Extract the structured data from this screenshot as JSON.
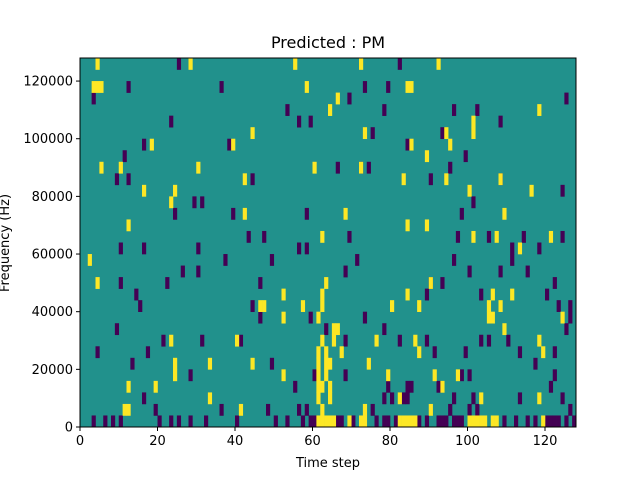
{
  "chart_data": {
    "type": "heatmap",
    "title": "Predicted : PM",
    "xlabel": "Time step",
    "ylabel": "Frequency (Hz)",
    "xlim": [
      0,
      128
    ],
    "ylim": [
      0,
      128000
    ],
    "xticks": [
      0,
      20,
      40,
      60,
      80,
      100,
      120
    ],
    "yticks": [
      0,
      20000,
      40000,
      60000,
      80000,
      100000,
      120000
    ],
    "xtick_labels": [
      "0",
      "20",
      "40",
      "60",
      "80",
      "100",
      "120"
    ],
    "ytick_labels": [
      "0",
      "20000",
      "40000",
      "60000",
      "80000",
      "100000",
      "120000"
    ],
    "grid": false,
    "colormap": "viridis",
    "colors": {
      "background": "#21918c",
      "high": "#fde725",
      "low": "#440154"
    },
    "cell_width_steps": 1,
    "cell_height_hz": 4000,
    "cells_high": [
      [
        4,
        124000
      ],
      [
        3,
        116000
      ],
      [
        4,
        116000
      ],
      [
        5,
        116000
      ],
      [
        28,
        124000
      ],
      [
        55,
        124000
      ],
      [
        72,
        124000
      ],
      [
        92,
        124000
      ],
      [
        58,
        116000
      ],
      [
        84,
        116000
      ],
      [
        66,
        112000
      ],
      [
        85,
        116000
      ],
      [
        64,
        108000
      ],
      [
        118,
        108000
      ],
      [
        101,
        104000
      ],
      [
        18,
        96000
      ],
      [
        39,
        96000
      ],
      [
        85,
        96000
      ],
      [
        95,
        96000
      ],
      [
        44,
        100000
      ],
      [
        73,
        100000
      ],
      [
        94,
        100000
      ],
      [
        101,
        100000
      ],
      [
        10,
        88000
      ],
      [
        89,
        92000
      ],
      [
        72,
        88000
      ],
      [
        5,
        88000
      ],
      [
        60,
        88000
      ],
      [
        30,
        88000
      ],
      [
        16,
        80000
      ],
      [
        24,
        80000
      ],
      [
        42,
        84000
      ],
      [
        83,
        84000
      ],
      [
        94,
        84000
      ],
      [
        100,
        80000
      ],
      [
        116,
        80000
      ],
      [
        108,
        84000
      ],
      [
        12,
        68000
      ],
      [
        2,
        56000
      ],
      [
        4,
        48000
      ],
      [
        23,
        76000
      ],
      [
        42,
        72000
      ],
      [
        62,
        64000
      ],
      [
        68,
        72000
      ],
      [
        84,
        68000
      ],
      [
        89,
        68000
      ],
      [
        101,
        64000
      ],
      [
        107,
        64000
      ],
      [
        113,
        60000
      ],
      [
        109,
        72000
      ],
      [
        121,
        64000
      ],
      [
        80,
        40000
      ],
      [
        84,
        44000
      ],
      [
        87,
        40000
      ],
      [
        90,
        48000
      ],
      [
        46,
        40000
      ],
      [
        47,
        40000
      ],
      [
        52,
        44000
      ],
      [
        52,
        36000
      ],
      [
        57,
        40000
      ],
      [
        61,
        36000
      ],
      [
        62,
        44000
      ],
      [
        62,
        40000
      ],
      [
        63,
        48000
      ],
      [
        65,
        28000
      ],
      [
        65,
        32000
      ],
      [
        66,
        32000
      ],
      [
        67,
        24000
      ],
      [
        76,
        28000
      ],
      [
        74,
        20000
      ],
      [
        79,
        16000
      ],
      [
        82,
        8000
      ],
      [
        86,
        28000
      ],
      [
        87,
        24000
      ],
      [
        91,
        16000
      ],
      [
        93,
        12000
      ],
      [
        97,
        16000
      ],
      [
        103,
        8000
      ],
      [
        105,
        36000
      ],
      [
        105,
        40000
      ],
      [
        106,
        44000
      ],
      [
        106,
        36000
      ],
      [
        108,
        40000
      ],
      [
        109,
        32000
      ],
      [
        111,
        44000
      ],
      [
        118,
        28000
      ],
      [
        119,
        24000
      ],
      [
        124,
        36000
      ],
      [
        33,
        20000
      ],
      [
        23,
        28000
      ],
      [
        40,
        28000
      ],
      [
        44,
        20000
      ],
      [
        52,
        16000
      ],
      [
        24,
        16000
      ],
      [
        12,
        12000
      ],
      [
        11,
        4000
      ],
      [
        12,
        4000
      ],
      [
        19,
        12000
      ],
      [
        24,
        20000
      ],
      [
        33,
        8000
      ],
      [
        41,
        4000
      ],
      [
        61,
        24000
      ],
      [
        61,
        20000
      ],
      [
        61,
        16000
      ],
      [
        61,
        12000
      ],
      [
        61,
        8000
      ],
      [
        62,
        4000
      ],
      [
        61,
        0
      ],
      [
        62,
        0
      ],
      [
        63,
        0
      ],
      [
        64,
        0
      ],
      [
        65,
        0
      ],
      [
        62,
        12000
      ],
      [
        63,
        16000
      ],
      [
        63,
        20000
      ],
      [
        63,
        24000
      ],
      [
        62,
        28000
      ],
      [
        64,
        20000
      ],
      [
        64,
        8000
      ],
      [
        64,
        12000
      ],
      [
        69,
        0
      ],
      [
        72,
        0
      ],
      [
        73,
        4000
      ],
      [
        73,
        0
      ],
      [
        82,
        0
      ],
      [
        83,
        0
      ],
      [
        84,
        0
      ],
      [
        85,
        0
      ],
      [
        86,
        0
      ],
      [
        90,
        4000
      ],
      [
        100,
        0
      ],
      [
        101,
        0
      ],
      [
        102,
        0
      ],
      [
        103,
        0
      ],
      [
        104,
        0
      ],
      [
        106,
        0
      ],
      [
        107,
        0
      ],
      [
        118,
        8000
      ],
      [
        119,
        0
      ]
    ],
    "cells_low": [
      [
        25,
        124000
      ],
      [
        12,
        116000
      ],
      [
        3,
        112000
      ],
      [
        73,
        116000
      ],
      [
        69,
        112000
      ],
      [
        79,
        116000
      ],
      [
        82,
        124000
      ],
      [
        96,
        108000
      ],
      [
        102,
        108000
      ],
      [
        125,
        112000
      ],
      [
        36,
        116000
      ],
      [
        53,
        108000
      ],
      [
        23,
        104000
      ],
      [
        56,
        104000
      ],
      [
        59,
        104000
      ],
      [
        75,
        100000
      ],
      [
        78,
        108000
      ],
      [
        93,
        100000
      ],
      [
        99,
        92000
      ],
      [
        108,
        104000
      ],
      [
        16,
        96000
      ],
      [
        11,
        92000
      ],
      [
        38,
        96000
      ],
      [
        84,
        96000
      ],
      [
        74,
        88000
      ],
      [
        95,
        88000
      ],
      [
        72,
        88000
      ],
      [
        9,
        84000
      ],
      [
        12,
        84000
      ],
      [
        44,
        84000
      ],
      [
        90,
        84000
      ],
      [
        66,
        88000
      ],
      [
        108,
        84000
      ],
      [
        124,
        80000
      ],
      [
        101,
        76000
      ],
      [
        24,
        72000
      ],
      [
        29,
        76000
      ],
      [
        39,
        72000
      ],
      [
        31,
        76000
      ],
      [
        58,
        72000
      ],
      [
        98,
        72000
      ],
      [
        43,
        64000
      ],
      [
        10,
        60000
      ],
      [
        16,
        60000
      ],
      [
        30,
        60000
      ],
      [
        37,
        56000
      ],
      [
        47,
        64000
      ],
      [
        58,
        60000
      ],
      [
        69,
        64000
      ],
      [
        97,
        64000
      ],
      [
        105,
        64000
      ],
      [
        114,
        64000
      ],
      [
        118,
        60000
      ],
      [
        111,
        56000
      ],
      [
        124,
        64000
      ],
      [
        26,
        52000
      ],
      [
        30,
        52000
      ],
      [
        46,
        48000
      ],
      [
        10,
        48000
      ],
      [
        14,
        44000
      ],
      [
        15,
        40000
      ],
      [
        22,
        48000
      ],
      [
        49,
        56000
      ],
      [
        56,
        60000
      ],
      [
        68,
        52000
      ],
      [
        71,
        56000
      ],
      [
        89,
        44000
      ],
      [
        90,
        48000
      ],
      [
        93,
        48000
      ],
      [
        96,
        56000
      ],
      [
        100,
        52000
      ],
      [
        103,
        44000
      ],
      [
        108,
        52000
      ],
      [
        111,
        60000
      ],
      [
        115,
        52000
      ],
      [
        120,
        44000
      ],
      [
        122,
        48000
      ],
      [
        44,
        40000
      ],
      [
        46,
        36000
      ],
      [
        59,
        36000
      ],
      [
        63,
        32000
      ],
      [
        68,
        28000
      ],
      [
        73,
        36000
      ],
      [
        78,
        32000
      ],
      [
        82,
        28000
      ],
      [
        89,
        28000
      ],
      [
        91,
        24000
      ],
      [
        99,
        24000
      ],
      [
        103,
        28000
      ],
      [
        105,
        28000
      ],
      [
        110,
        28000
      ],
      [
        113,
        24000
      ],
      [
        117,
        20000
      ],
      [
        122,
        24000
      ],
      [
        125,
        32000
      ],
      [
        123,
        40000
      ],
      [
        126,
        36000
      ],
      [
        126,
        40000
      ],
      [
        13,
        20000
      ],
      [
        4,
        24000
      ],
      [
        9,
        32000
      ],
      [
        17,
        24000
      ],
      [
        21,
        28000
      ],
      [
        31,
        28000
      ],
      [
        41,
        28000
      ],
      [
        28,
        16000
      ],
      [
        49,
        20000
      ],
      [
        55,
        12000
      ],
      [
        60,
        16000
      ],
      [
        68,
        16000
      ],
      [
        78,
        8000
      ],
      [
        79,
        12000
      ],
      [
        83,
        8000
      ],
      [
        84,
        12000
      ],
      [
        85,
        12000
      ],
      [
        92,
        12000
      ],
      [
        96,
        8000
      ],
      [
        98,
        16000
      ],
      [
        100,
        16000
      ],
      [
        102,
        4000
      ],
      [
        101,
        8000
      ],
      [
        113,
        8000
      ],
      [
        121,
        12000
      ],
      [
        122,
        16000
      ],
      [
        124,
        8000
      ],
      [
        3,
        0
      ],
      [
        6,
        0
      ],
      [
        8,
        0
      ],
      [
        10,
        0
      ],
      [
        16,
        8000
      ],
      [
        19,
        4000
      ],
      [
        20,
        0
      ],
      [
        23,
        0
      ],
      [
        25,
        0
      ],
      [
        28,
        0
      ],
      [
        32,
        0
      ],
      [
        36,
        4000
      ],
      [
        40,
        0
      ],
      [
        48,
        4000
      ],
      [
        50,
        0
      ],
      [
        53,
        0
      ],
      [
        57,
        0
      ],
      [
        56,
        4000
      ],
      [
        58,
        4000
      ],
      [
        59,
        0
      ],
      [
        60,
        0
      ],
      [
        66,
        0
      ],
      [
        67,
        0
      ],
      [
        70,
        0
      ],
      [
        75,
        4000
      ],
      [
        76,
        0
      ],
      [
        78,
        0
      ],
      [
        79,
        0
      ],
      [
        80,
        8000
      ],
      [
        81,
        0
      ],
      [
        84,
        8000
      ],
      [
        87,
        0
      ],
      [
        89,
        0
      ],
      [
        92,
        0
      ],
      [
        93,
        0
      ],
      [
        94,
        0
      ],
      [
        95,
        4000
      ],
      [
        96,
        0
      ],
      [
        97,
        0
      ],
      [
        98,
        0
      ],
      [
        100,
        4000
      ],
      [
        109,
        0
      ],
      [
        112,
        0
      ],
      [
        115,
        0
      ],
      [
        117,
        0
      ],
      [
        120,
        0
      ],
      [
        121,
        0
      ],
      [
        122,
        0
      ],
      [
        123,
        0
      ],
      [
        125,
        0
      ],
      [
        126,
        4000
      ],
      [
        127,
        0
      ]
    ]
  }
}
